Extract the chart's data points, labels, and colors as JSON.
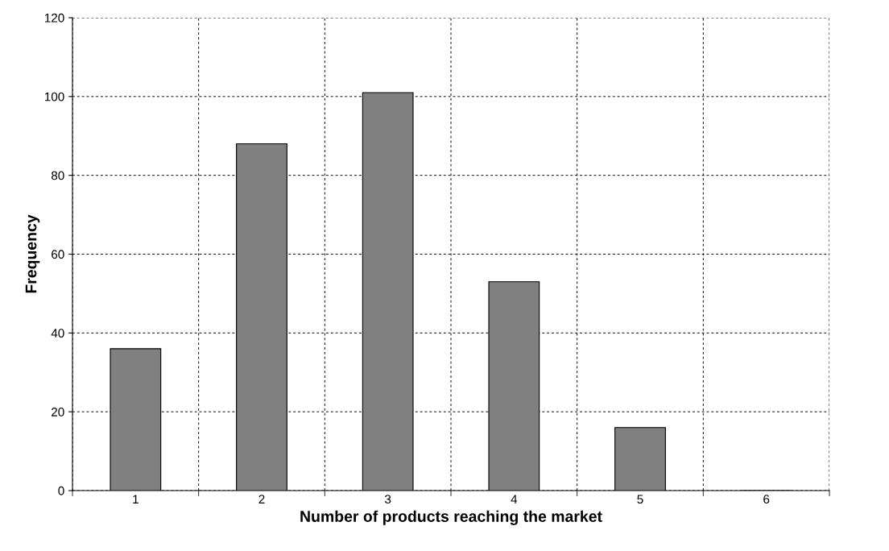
{
  "chart_data": {
    "type": "bar",
    "xlabel": "Number of products reaching the market",
    "ylabel": "Frequency",
    "categories": [
      "1",
      "2",
      "3",
      "4",
      "5",
      "6"
    ],
    "values": [
      36,
      88,
      101,
      53,
      16,
      0
    ],
    "color": "#808080",
    "ylim": [
      0,
      120
    ],
    "yticks": [
      0,
      20,
      40,
      60,
      80,
      100,
      120
    ],
    "grid": true
  }
}
